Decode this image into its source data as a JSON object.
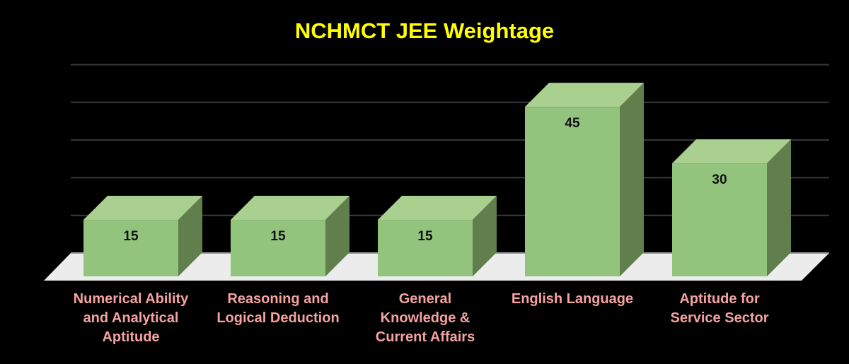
{
  "chart_data": {
    "type": "bar",
    "style": "3d-column",
    "title": "NCHMCT JEE Weightage",
    "xlabel": "",
    "ylabel": "",
    "categories": [
      "Numerical Ability and Analytical Aptitude",
      "Reasoning and Logical Deduction",
      "General Knowledge & Current Affairs",
      "English Language",
      "Aptitude for Service Sector"
    ],
    "category_label_lines": [
      "Numerical Ability\nand Analytical\nAptitude",
      "Reasoning and\nLogical Deduction",
      "General\nKnowledge &\nCurrent Affairs",
      "English Language",
      "Aptitude for\nService Sector"
    ],
    "values": [
      15,
      15,
      15,
      45,
      30
    ],
    "data_labels": [
      "15",
      "15",
      "15",
      "45",
      "30"
    ],
    "ylim": [
      0,
      50
    ],
    "gridlines": [
      10,
      20,
      30,
      40,
      50
    ],
    "grid": true,
    "legend": null,
    "colors": {
      "background": "#000000",
      "title": "#ffff00",
      "category_label": "#f4a3a0",
      "bar_front": "#93c47d",
      "bar_top": "#a9d08e",
      "bar_side": "#607f4c",
      "floor": "#ececec",
      "gridline": "#3a3a3a",
      "data_label": "#111111"
    }
  }
}
